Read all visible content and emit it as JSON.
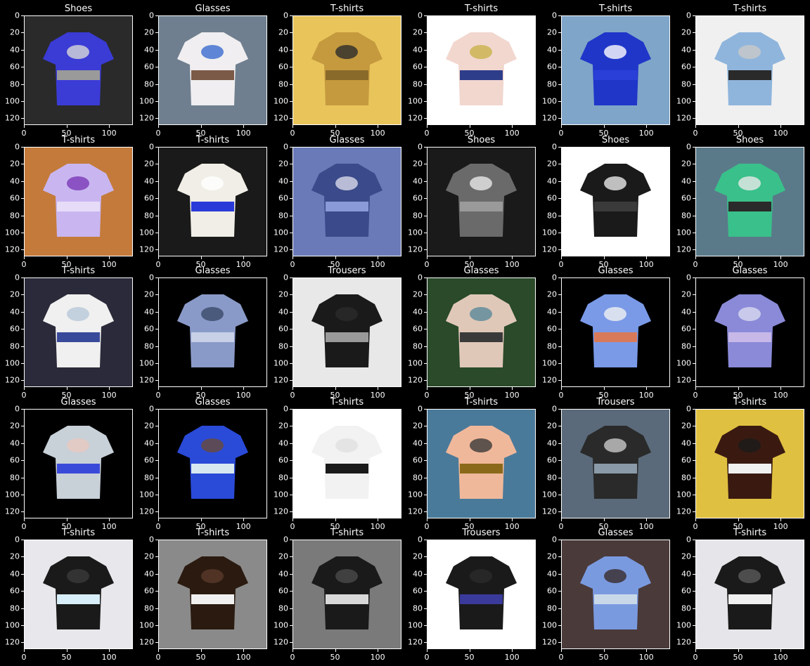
{
  "chart_data": {
    "type": "image_grid",
    "rows": 5,
    "cols": 6,
    "axis": {
      "xticks": [
        0,
        50,
        100
      ],
      "yticks": [
        0,
        20,
        40,
        60,
        80,
        100,
        120
      ],
      "xlim": [
        0,
        128
      ],
      "ylim": [
        128,
        0
      ]
    },
    "panels": [
      {
        "title": "Shoes",
        "colors": [
          "#2a2a2a",
          "#3b3bd6",
          "#9a9a9a",
          "#d8d8d8"
        ]
      },
      {
        "title": "Glasses",
        "colors": [
          "#6f7f8f",
          "#f0eef0",
          "#7c5a48",
          "#3b6ad0"
        ]
      },
      {
        "title": "T-shirts",
        "colors": [
          "#e8c45a",
          "#c59a3e",
          "#8a6a2a",
          "#2a2a2a"
        ]
      },
      {
        "title": "T-shirts",
        "colors": [
          "#ffffff",
          "#f2d7cf",
          "#2e3d8a",
          "#c9b24a"
        ]
      },
      {
        "title": "T-shirts",
        "colors": [
          "#7fa5c8",
          "#1f36c9",
          "#2a3fd8",
          "#ffffff"
        ]
      },
      {
        "title": "T-shirts",
        "colors": [
          "#f0f0f0",
          "#8fb5dc",
          "#2a2a2a",
          "#c9c9c9"
        ]
      },
      {
        "title": "T-shirts",
        "colors": [
          "#c47a3a",
          "#c9b6f0",
          "#e6dcf8",
          "#7a3ab8"
        ]
      },
      {
        "title": "T-shirts",
        "colors": [
          "#1a1a1a",
          "#f0eee6",
          "#2a3ad8",
          "#ffffff"
        ]
      },
      {
        "title": "Glasses",
        "colors": [
          "#6a7ab8",
          "#3a4a8a",
          "#8a9ad8",
          "#d8d8e8"
        ]
      },
      {
        "title": "Shoes",
        "colors": [
          "#1a1a1a",
          "#6a6a6a",
          "#9a9a9a",
          "#e8e8e8"
        ]
      },
      {
        "title": "Shoes",
        "colors": [
          "#ffffff",
          "#1a1a1a",
          "#3a3a3a",
          "#e8e8e8"
        ]
      },
      {
        "title": "Shoes",
        "colors": [
          "#5a7a8a",
          "#3ac08a",
          "#2a2a2a",
          "#e8e8e8"
        ]
      },
      {
        "title": "T-shirts",
        "colors": [
          "#2a2a3a",
          "#f0f0f0",
          "#3a4a9a",
          "#b8c8d8"
        ]
      },
      {
        "title": "Glasses",
        "colors": [
          "#000000",
          "#8a9ac8",
          "#c8d0e8",
          "#3a4a6a"
        ]
      },
      {
        "title": "Trousers",
        "colors": [
          "#e8e8e8",
          "#1a1a1a",
          "#9a9a9a",
          "#2a2a2a"
        ]
      },
      {
        "title": "Glasses",
        "colors": [
          "#2a4a2a",
          "#e0c8b8",
          "#3a3a3a",
          "#5a8a9a"
        ]
      },
      {
        "title": "Glasses",
        "colors": [
          "#000000",
          "#7a9ae8",
          "#d87a5a",
          "#f0f0f0"
        ]
      },
      {
        "title": "Glasses",
        "colors": [
          "#000000",
          "#8a8ad8",
          "#c8b8e8",
          "#d8d8f0"
        ]
      },
      {
        "title": "Glasses",
        "colors": [
          "#000000",
          "#c8d0d8",
          "#3a4ad8",
          "#e8c8c0"
        ]
      },
      {
        "title": "Glasses",
        "colors": [
          "#000000",
          "#2a4ad8",
          "#d8e8f0",
          "#6a4a3a"
        ]
      },
      {
        "title": "T-shirts",
        "colors": [
          "#ffffff",
          "#f2f2f2",
          "#1a1a1a",
          "#e0e0e0"
        ]
      },
      {
        "title": "T-shirts",
        "colors": [
          "#4a7a9a",
          "#f0b89a",
          "#8a6a1a",
          "#3a3a3a"
        ]
      },
      {
        "title": "Trousers",
        "colors": [
          "#5a6a7a",
          "#2a2a2a",
          "#8a9aa8",
          "#c8c8c8"
        ]
      },
      {
        "title": "T-shirts",
        "colors": [
          "#e0c040",
          "#3a1a10",
          "#f0f0f0",
          "#1a1a1a"
        ]
      },
      {
        "title": "T-shirts",
        "colors": [
          "#e8e8ec",
          "#1a1a1a",
          "#d8eef8",
          "#3a3a3a"
        ]
      },
      {
        "title": "T-shirts",
        "colors": [
          "#8a8a8a",
          "#2a1a10",
          "#f0f0f0",
          "#5a3a2a"
        ]
      },
      {
        "title": "T-shirts",
        "colors": [
          "#7a7a7a",
          "#1a1a1a",
          "#d8d8d8",
          "#4a4a4a"
        ]
      },
      {
        "title": "Trousers",
        "colors": [
          "#ffffff",
          "#1a1a1a",
          "#3a3a9a",
          "#2a2a2a"
        ]
      },
      {
        "title": "Glasses",
        "colors": [
          "#4a3a3a",
          "#7a9ae0",
          "#c8d8e8",
          "#3a2a2a"
        ]
      },
      {
        "title": "T-shirts",
        "colors": [
          "#e6e6ea",
          "#1a1a1a",
          "#f0f0f0",
          "#5a5a5a"
        ]
      }
    ]
  }
}
